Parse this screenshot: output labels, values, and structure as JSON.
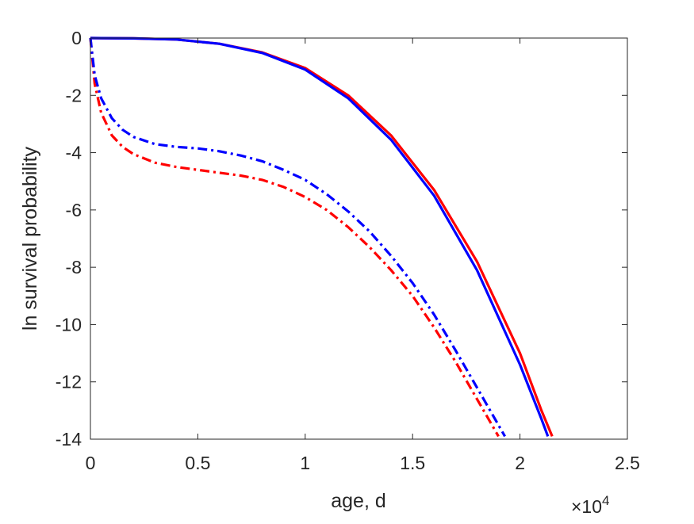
{
  "chart_data": {
    "type": "line",
    "title": "",
    "xlabel": "age, d",
    "ylabel": "ln survival probability",
    "x_exponent_label": "×10",
    "x_exponent_power": "4",
    "xlim": [
      0,
      25000
    ],
    "ylim": [
      -14,
      0
    ],
    "x_ticks": [
      0,
      5000,
      10000,
      15000,
      20000,
      25000
    ],
    "x_tick_labels": [
      "0",
      "0.5",
      "1",
      "1.5",
      "2",
      "2.5"
    ],
    "y_ticks": [
      0,
      -2,
      -4,
      -6,
      -8,
      -10,
      -12,
      -14
    ],
    "y_tick_labels": [
      "0",
      "-2",
      "-4",
      "-6",
      "-8",
      "-10",
      "-12",
      "-14"
    ],
    "grid": false,
    "legend": "none",
    "series": [
      {
        "color": "#ff0000",
        "style": "solid",
        "x": [
          0,
          2000,
          4000,
          6000,
          8000,
          10000,
          12000,
          14000,
          16000,
          18000,
          20000,
          21000,
          21500
        ],
        "values": [
          0,
          -0.01,
          -0.05,
          -0.2,
          -0.5,
          -1.05,
          -2.0,
          -3.4,
          -5.3,
          -7.8,
          -11.0,
          -13.0,
          -13.9
        ]
      },
      {
        "color": "#0000ff",
        "style": "solid",
        "x": [
          0,
          2000,
          4000,
          6000,
          8000,
          10000,
          12000,
          14000,
          16000,
          18000,
          20000,
          21000,
          21300
        ],
        "values": [
          0,
          -0.01,
          -0.05,
          -0.2,
          -0.52,
          -1.1,
          -2.1,
          -3.55,
          -5.5,
          -8.1,
          -11.4,
          -13.3,
          -13.9
        ]
      },
      {
        "color": "#ff0000",
        "style": "dashdot",
        "x": [
          0,
          200,
          500,
          1000,
          1500,
          2000,
          3000,
          4000,
          5000,
          6000,
          7000,
          8000,
          9000,
          10000,
          11000,
          12000,
          13000,
          14000,
          15000,
          16000,
          17000,
          18000,
          19000
        ],
        "values": [
          0,
          -1.6,
          -2.6,
          -3.4,
          -3.8,
          -4.05,
          -4.35,
          -4.5,
          -4.6,
          -4.7,
          -4.8,
          -4.95,
          -5.2,
          -5.55,
          -6.0,
          -6.6,
          -7.3,
          -8.1,
          -9.0,
          -10.1,
          -11.3,
          -12.6,
          -13.9
        ]
      },
      {
        "color": "#0000ff",
        "style": "dashdot",
        "x": [
          0,
          200,
          500,
          1000,
          1500,
          2000,
          3000,
          4000,
          5000,
          6000,
          7000,
          8000,
          9000,
          10000,
          11000,
          12000,
          13000,
          14000,
          15000,
          16000,
          17000,
          18000,
          19300
        ],
        "values": [
          0,
          -1.3,
          -2.1,
          -2.8,
          -3.2,
          -3.45,
          -3.7,
          -3.8,
          -3.85,
          -3.95,
          -4.1,
          -4.3,
          -4.6,
          -4.95,
          -5.45,
          -6.05,
          -6.75,
          -7.6,
          -8.55,
          -9.65,
          -10.9,
          -12.2,
          -13.9
        ]
      }
    ]
  }
}
